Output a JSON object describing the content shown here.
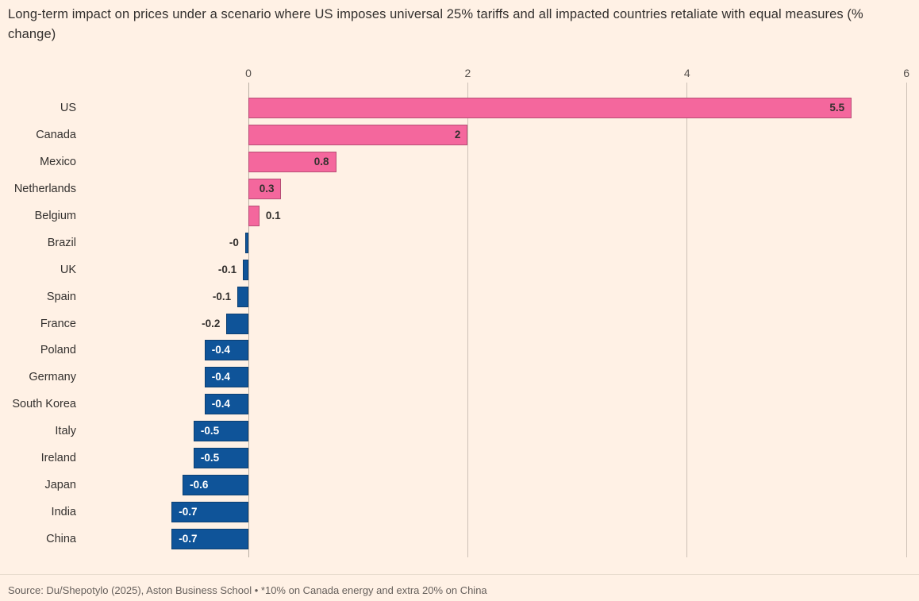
{
  "page": {
    "title": "Long-term impact on prices under a scenario where US imposes universal 25% tariffs and all impacted countries retaliate with equal measures (% change)",
    "source": "Source: Du/Shepotylo (2025), Aston Business School • *10% on Canada energy and extra 20% on China"
  },
  "chart_data": {
    "type": "bar",
    "orientation": "horizontal",
    "title": "Long-term impact on prices under a scenario where US imposes universal 25% tariffs and all impacted countries retaliate with equal measures (% change)",
    "xlabel": "",
    "ylabel": "",
    "xlim": [
      -0.8,
      6.1
    ],
    "x_ticks": [
      0,
      2,
      4,
      6
    ],
    "x_tick_labels": [
      "0",
      "2",
      "4",
      "6"
    ],
    "grid": "vertical",
    "legend": "none",
    "categories": [
      "US",
      "Canada",
      "Mexico",
      "Netherlands",
      "Belgium",
      "Brazil",
      "UK",
      "Spain",
      "France",
      "Poland",
      "Germany",
      "South Korea",
      "Italy",
      "Ireland",
      "Japan",
      "India",
      "China"
    ],
    "values": [
      5.5,
      2,
      0.8,
      0.3,
      0.1,
      -0.03,
      -0.05,
      -0.1,
      -0.2,
      -0.4,
      -0.4,
      -0.4,
      -0.5,
      -0.5,
      -0.6,
      -0.7,
      -0.7
    ],
    "value_labels": [
      "5.5",
      "2",
      "0.8",
      "0.3",
      "0.1",
      "-0",
      "-0.1",
      "-0.1",
      "-0.2",
      "-0.4",
      "-0.4",
      "-0.4",
      "-0.5",
      "-0.5",
      "-0.6",
      "-0.7",
      "-0.7"
    ],
    "colors": {
      "positive": "#f4679d",
      "negative": "#0f5499",
      "background": "#fff1e5",
      "grid": "#cdc1b6",
      "title_text": "#33302e",
      "axis_text": "#57514d",
      "label_text": "#33302e",
      "value_inside_negative": "#ffffff",
      "source_text": "#66605c"
    }
  }
}
